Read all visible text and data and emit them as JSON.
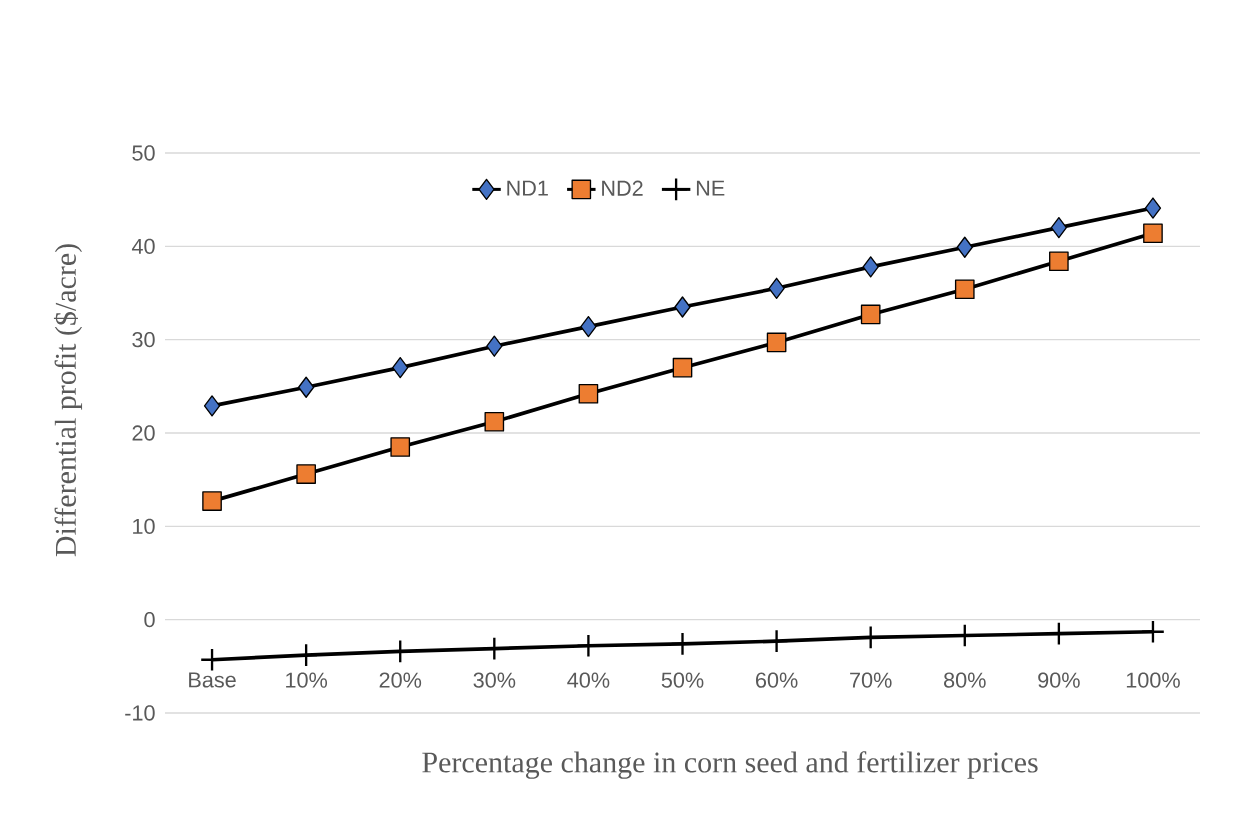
{
  "chart_data": {
    "type": "line",
    "xlabel": "Percentage change in corn seed and fertilizer prices",
    "ylabel": "Differential profit ($/acre)",
    "categories": [
      "Base",
      "10%",
      "20%",
      "30%",
      "40%",
      "50%",
      "60%",
      "70%",
      "80%",
      "90%",
      "100%"
    ],
    "series": [
      {
        "name": "ND1",
        "color": "#4472c4",
        "marker": "diamond",
        "values": [
          22.9,
          24.9,
          27.0,
          29.3,
          31.4,
          33.5,
          35.5,
          37.8,
          39.9,
          42.0,
          44.1
        ]
      },
      {
        "name": "ND2",
        "color": "#ed7d31",
        "marker": "square",
        "values": [
          12.7,
          15.6,
          18.5,
          21.2,
          24.2,
          27.0,
          29.7,
          32.7,
          35.4,
          38.4,
          41.4
        ]
      },
      {
        "name": "NE",
        "color": "#000000",
        "marker": "cross",
        "values": [
          -4.3,
          -3.8,
          -3.4,
          -3.1,
          -2.8,
          -2.6,
          -2.3,
          -1.9,
          -1.7,
          -1.5,
          -1.3
        ]
      }
    ],
    "ylim": [
      -10,
      50
    ],
    "yticks": [
      -10,
      0,
      10,
      20,
      30,
      40,
      50
    ],
    "grid": "y",
    "legend": "top",
    "line_style": "solid"
  }
}
